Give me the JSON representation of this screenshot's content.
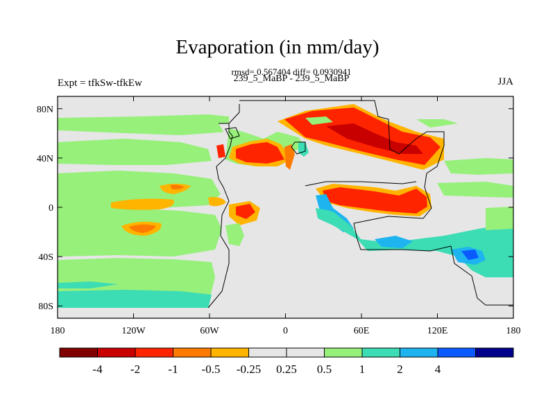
{
  "title": "Evaporation (in mm/day)",
  "stats": "rmsd= 0.567404  diff= 0.0930941",
  "subtitle_center": "239_5_MaBP - 239_5_MaBP",
  "subtitle_left": "Expt = tfkSw-tfkEw",
  "subtitle_right": "JJA",
  "lat_labels": [
    {
      "label": "80N",
      "lat": 80
    },
    {
      "label": "40N",
      "lat": 40
    },
    {
      "label": "0",
      "lat": 0
    },
    {
      "label": "40S",
      "lat": -40
    },
    {
      "label": "80S",
      "lat": -80
    }
  ],
  "lon_labels": [
    {
      "label": "180",
      "lon": -180
    },
    {
      "label": "120W",
      "lon": -120
    },
    {
      "label": "60W",
      "lon": -60
    },
    {
      "label": "0",
      "lon": 0
    },
    {
      "label": "60E",
      "lon": 60
    },
    {
      "label": "120E",
      "lon": 120
    },
    {
      "label": "180",
      "lon": 180
    }
  ],
  "colorbar": {
    "colors": [
      "#800000",
      "#c80000",
      "#ff2400",
      "#ff7a00",
      "#ffb400",
      "#e6e6e6",
      "#e6e6e6",
      "#96f07a",
      "#3cdcb4",
      "#1eb4f0",
      "#0a5aff",
      "#00008c"
    ],
    "labels": [
      "-4",
      "-2",
      "-1",
      "-0.5",
      "-0.25",
      "0.25",
      "0.5",
      "1",
      "2",
      "4"
    ]
  }
}
